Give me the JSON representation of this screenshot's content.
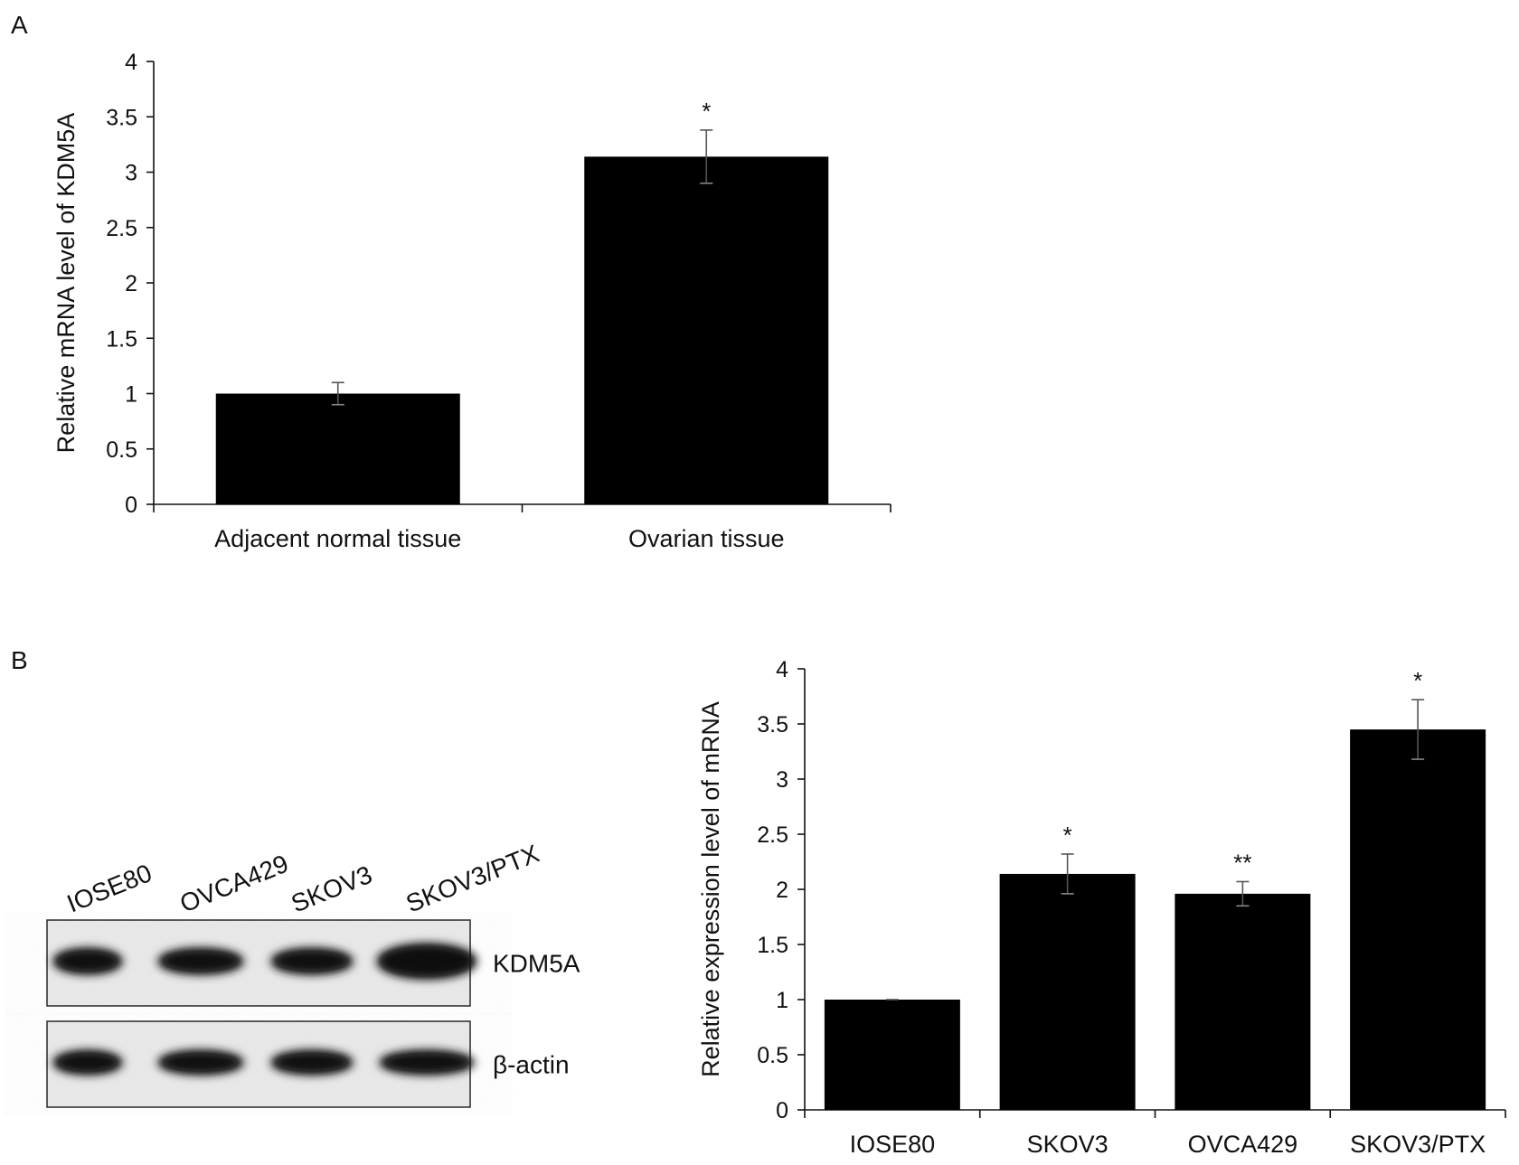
{
  "panels": {
    "a_label": "A",
    "b_label": "B"
  },
  "chart_data": [
    {
      "type": "bar",
      "panel": "A",
      "ylabel": "Relative mRNA level of KDM5A",
      "xlabel": "",
      "ylim": [
        0,
        4
      ],
      "yticks": [
        "0",
        "0.5",
        "1",
        "1.5",
        "2",
        "2.5",
        "3",
        "3.5",
        "4"
      ],
      "categories": [
        "Adjacent normal tissue",
        "Ovarian tissue"
      ],
      "values": [
        1.0,
        3.14
      ],
      "errors": [
        0.1,
        0.24
      ],
      "annotations": [
        "",
        "*"
      ],
      "bar_color": "#000000",
      "grid": false
    },
    {
      "type": "bar",
      "panel": "B",
      "ylabel": "Relative expression level of mRNA",
      "xlabel": "",
      "ylim": [
        0,
        4
      ],
      "yticks": [
        "0",
        "0.5",
        "1",
        "1.5",
        "2",
        "2.5",
        "3",
        "3.5",
        "4"
      ],
      "categories": [
        "IOSE80",
        "SKOV3",
        "OVCA429",
        "SKOV3/PTX"
      ],
      "values": [
        1.0,
        2.14,
        1.96,
        3.45
      ],
      "errors": [
        0.0,
        0.18,
        0.11,
        0.27
      ],
      "annotations": [
        "",
        "*",
        "**",
        "*"
      ],
      "bar_color": "#000000",
      "grid": false
    }
  ],
  "western_blot": {
    "lane_labels": [
      "IOSE80",
      "OVCA429",
      "SKOV3",
      "SKOV3/PTX"
    ],
    "rows": [
      {
        "label": "KDM5A",
        "intensities": [
          0.85,
          0.9,
          0.88,
          1.0
        ]
      },
      {
        "label": "β-actin",
        "intensities": [
          0.9,
          0.9,
          0.88,
          0.9
        ]
      }
    ]
  }
}
